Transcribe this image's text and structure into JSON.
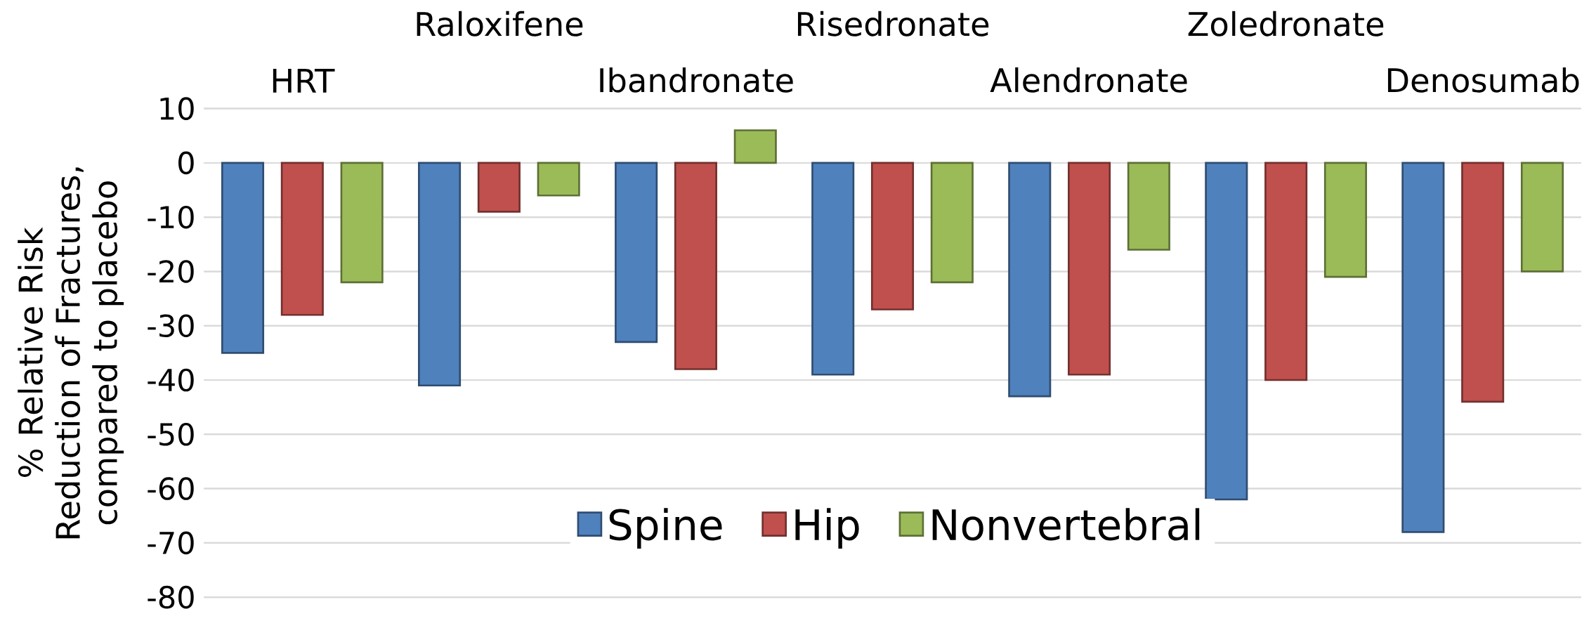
{
  "chart_data": {
    "type": "bar",
    "ylabel": "% Relative Risk Reduction of Fractures, compared to placebo",
    "categories": [
      "HRT",
      "Raloxifene",
      "Ibandronate",
      "Risedronate",
      "Alendronate",
      "Zoledronate",
      "Denosumab"
    ],
    "series": [
      {
        "name": "Spine",
        "color": "#4f81bd",
        "values": [
          -35,
          -41,
          -33,
          -39,
          -43,
          -62,
          -68
        ]
      },
      {
        "name": "Hip",
        "color": "#c0504d",
        "values": [
          -28,
          -9,
          -38,
          -27,
          -39,
          -40,
          -44
        ]
      },
      {
        "name": "Nonvertebral",
        "color": "#9bbb59",
        "values": [
          -22,
          -6,
          6,
          -22,
          -16,
          -21,
          -20
        ]
      }
    ],
    "ylim": [
      -80,
      10
    ],
    "yticks": [
      -80,
      -70,
      -60,
      -50,
      -40,
      -30,
      -20,
      -10,
      0,
      10
    ],
    "grid": "y",
    "legend": "bottom"
  }
}
